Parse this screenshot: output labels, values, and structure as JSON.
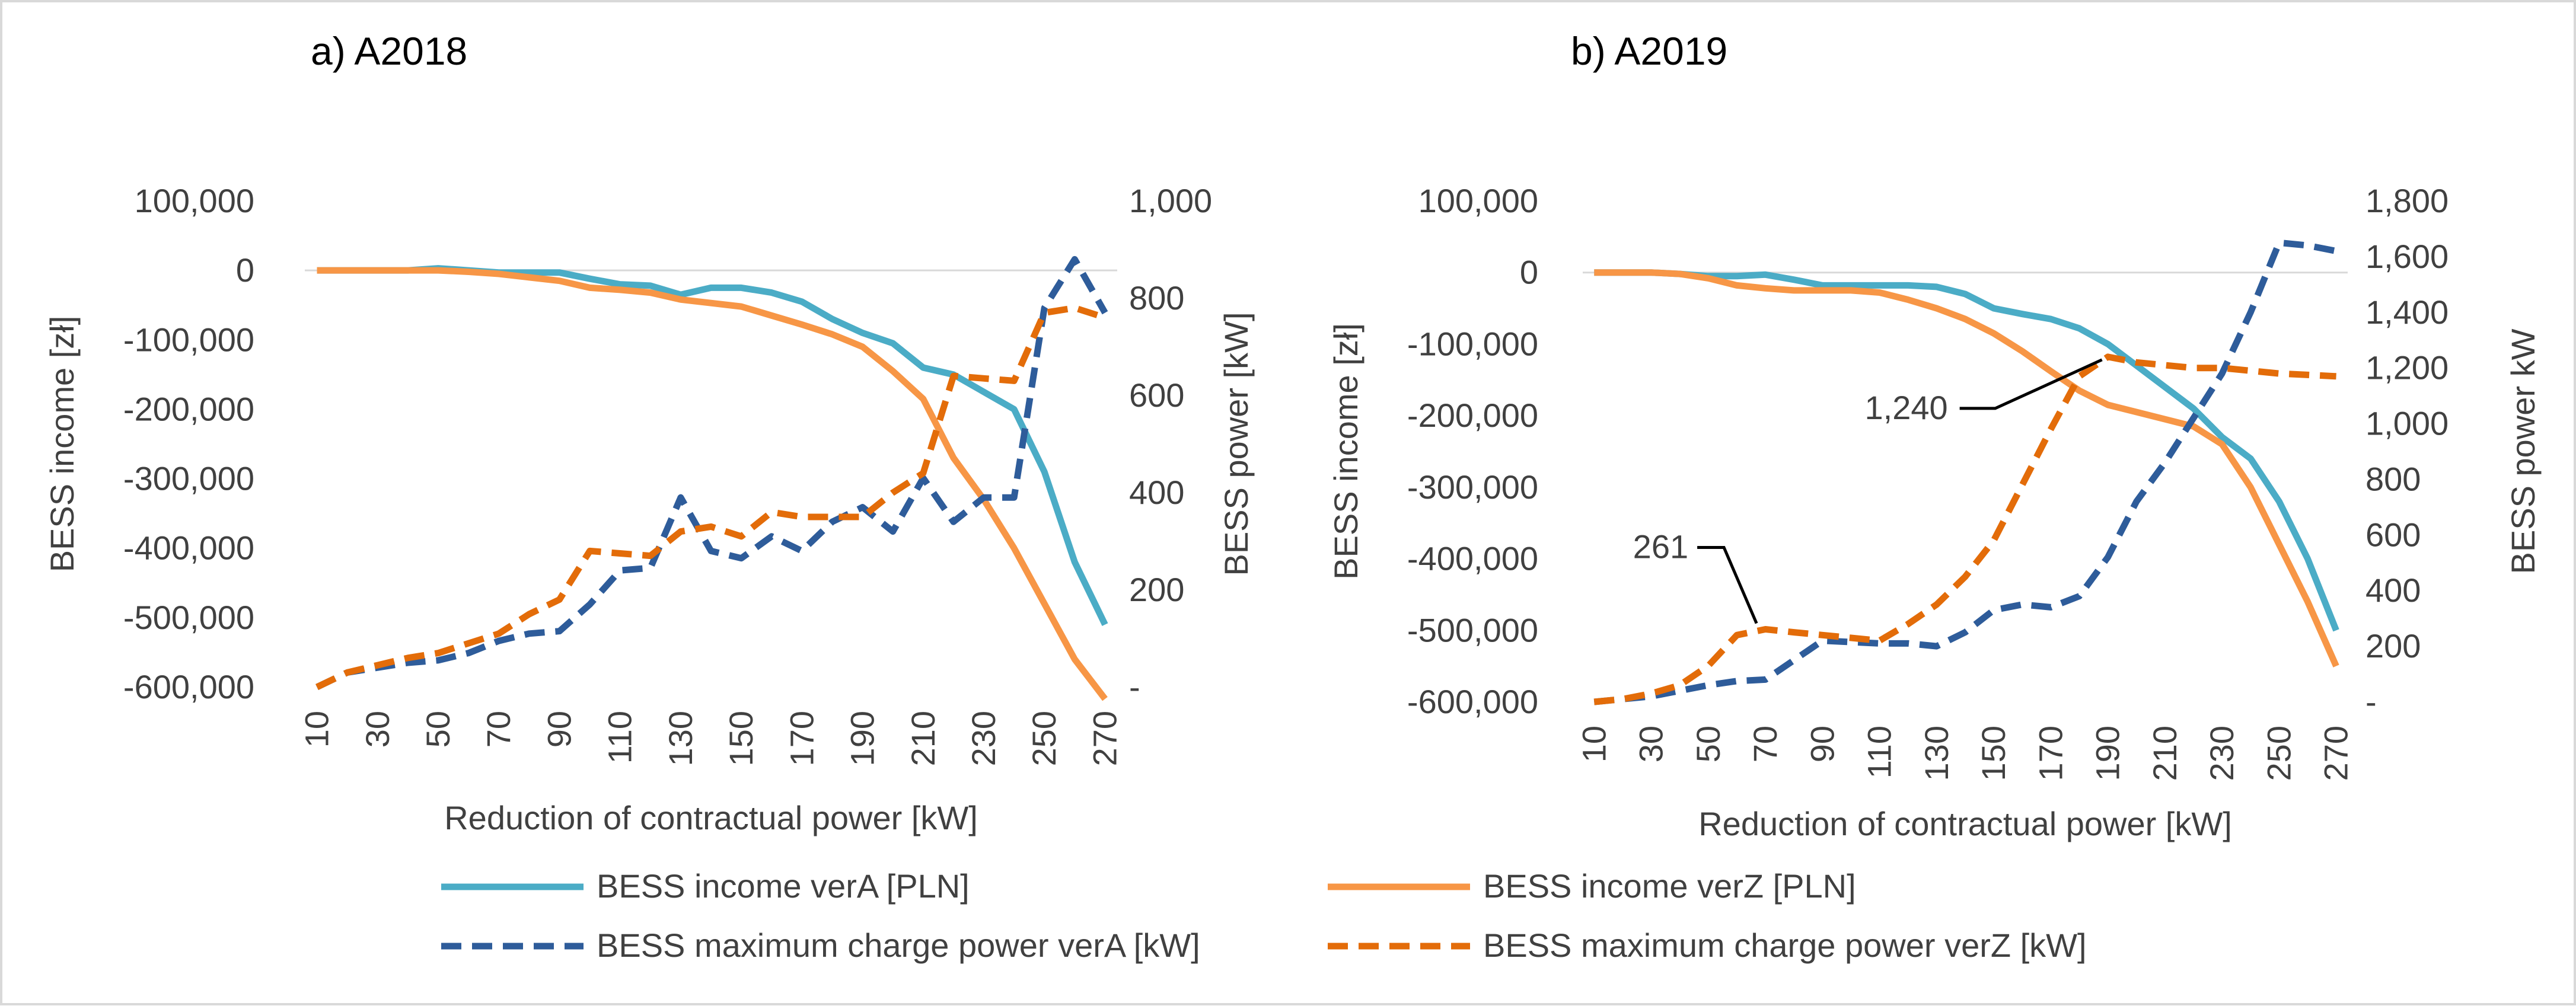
{
  "chart_data": [
    {
      "type": "line",
      "title": "a) A2018",
      "xlabel": "Reduction of contractual power [kW]",
      "ylabel": "BESS income [zł]",
      "y2label": "BESS power  [kW]",
      "ylim": [
        -600000,
        100000
      ],
      "y2lim": [
        0,
        1000
      ],
      "yticks": [
        100000,
        0,
        -100000,
        -200000,
        -300000,
        -400000,
        -500000,
        -600000
      ],
      "ytick_labels": [
        "100,000",
        "0",
        "-100,000",
        "-200,000",
        "-300,000",
        "-400,000",
        "-500,000",
        "-600,000"
      ],
      "y2ticks": [
        1000,
        800,
        600,
        400,
        200,
        0
      ],
      "y2tick_labels": [
        "1,000",
        "800",
        "600",
        "400",
        "200",
        "-"
      ],
      "x": [
        10,
        20,
        30,
        40,
        50,
        60,
        70,
        80,
        90,
        100,
        110,
        120,
        130,
        140,
        150,
        160,
        170,
        180,
        190,
        200,
        210,
        220,
        230,
        240,
        250,
        260,
        270
      ],
      "xtick_labels": [
        "10",
        "30",
        "50",
        "70",
        "90",
        "110",
        "130",
        "150",
        "170",
        "190",
        "210",
        "230",
        "250",
        "270"
      ],
      "grid": false,
      "legend_position": "bottom",
      "series": [
        {
          "name": "BESS income verA [PLN]",
          "axis": "left",
          "values": [
            0,
            0,
            0,
            0,
            3000,
            0,
            -3000,
            -3000,
            -3000,
            -12000,
            -20000,
            -22000,
            -35000,
            -25000,
            -25000,
            -32000,
            -45000,
            -70000,
            -90000,
            -105000,
            -140000,
            -150000,
            -175000,
            -200000,
            -290000,
            -420000,
            -510000
          ]
        },
        {
          "name": "BESS income verZ [PLN]",
          "axis": "left",
          "values": [
            0,
            0,
            0,
            0,
            0,
            -2000,
            -5000,
            -10000,
            -15000,
            -25000,
            -28000,
            -32000,
            -42000,
            -47000,
            -52000,
            -65000,
            -78000,
            -92000,
            -110000,
            -145000,
            -185000,
            -270000,
            -330000,
            -400000,
            -480000,
            -560000,
            -620000
          ]
        },
        {
          "name": "BESS maximum charge power verA [kW]",
          "axis": "right",
          "values": [
            0,
            30,
            40,
            50,
            55,
            70,
            95,
            110,
            115,
            170,
            240,
            245,
            390,
            280,
            265,
            310,
            280,
            340,
            370,
            320,
            430,
            340,
            390,
            390,
            780,
            880,
            770
          ]
        },
        {
          "name": "BESS maximum charge power verZ [kW]",
          "axis": "right",
          "values": [
            0,
            30,
            45,
            60,
            70,
            90,
            110,
            150,
            180,
            280,
            275,
            270,
            320,
            330,
            310,
            360,
            350,
            350,
            350,
            400,
            440,
            640,
            635,
            630,
            770,
            780,
            760
          ]
        }
      ],
      "annotations": []
    },
    {
      "type": "line",
      "title": "b) A2019",
      "xlabel": "Reduction of contractual power [kW]",
      "ylabel": "BESS income [zł]",
      "y2label": "BESS power  kW",
      "ylim": [
        -600000,
        100000
      ],
      "y2lim": [
        0,
        1800
      ],
      "yticks": [
        100000,
        0,
        -100000,
        -200000,
        -300000,
        -400000,
        -500000,
        -600000
      ],
      "ytick_labels": [
        "100,000",
        "0",
        "-100,000",
        "-200,000",
        "-300,000",
        "-400,000",
        "-500,000",
        "-600,000"
      ],
      "y2ticks": [
        1800,
        1600,
        1400,
        1200,
        1000,
        800,
        600,
        400,
        200,
        0
      ],
      "y2tick_labels": [
        "1,800",
        "1,600",
        "1,400",
        "1,200",
        "1,000",
        "800",
        "600",
        "400",
        "200",
        "-"
      ],
      "x": [
        10,
        20,
        30,
        40,
        50,
        60,
        70,
        80,
        90,
        100,
        110,
        120,
        130,
        140,
        150,
        160,
        170,
        180,
        190,
        200,
        210,
        220,
        230,
        240,
        250,
        260,
        270
      ],
      "xtick_labels": [
        "10",
        "30",
        "50",
        "70",
        "90",
        "110",
        "130",
        "150",
        "170",
        "190",
        "210",
        "230",
        "250",
        "270"
      ],
      "grid": false,
      "legend_position": "bottom",
      "series": [
        {
          "name": "BESS income verA [PLN]",
          "axis": "left",
          "values": [
            0,
            0,
            0,
            -2000,
            -5000,
            -5000,
            -3000,
            -10000,
            -18000,
            -18000,
            -18000,
            -18000,
            -20000,
            -30000,
            -50000,
            -58000,
            -65000,
            -78000,
            -100000,
            -130000,
            -160000,
            -190000,
            -230000,
            -260000,
            -320000,
            -400000,
            -500000
          ]
        },
        {
          "name": "BESS income verZ [PLN]",
          "axis": "left",
          "values": [
            0,
            0,
            0,
            -2000,
            -8000,
            -18000,
            -22000,
            -25000,
            -25000,
            -25000,
            -28000,
            -38000,
            -50000,
            -65000,
            -85000,
            -110000,
            -138000,
            -165000,
            -185000,
            -195000,
            -205000,
            -215000,
            -240000,
            -300000,
            -380000,
            -460000,
            -550000
          ]
        },
        {
          "name": "BESS maximum charge power verA [kW]",
          "axis": "right",
          "values": [
            0,
            10,
            20,
            40,
            60,
            75,
            80,
            150,
            220,
            215,
            210,
            210,
            200,
            250,
            330,
            350,
            340,
            380,
            520,
            720,
            860,
            1020,
            1180,
            1400,
            1650,
            1640,
            1620
          ]
        },
        {
          "name": "BESS maximum charge power verZ [kW]",
          "axis": "right",
          "values": [
            0,
            10,
            30,
            60,
            130,
            240,
            261,
            250,
            240,
            230,
            220,
            280,
            350,
            450,
            580,
            780,
            980,
            1170,
            1240,
            1220,
            1210,
            1200,
            1200,
            1190,
            1180,
            1175,
            1170
          ]
        }
      ],
      "annotations": [
        {
          "text": "1,240",
          "x": 190,
          "y": 1240,
          "axis": "right"
        },
        {
          "text": "261",
          "x": 70,
          "y": 261,
          "axis": "right"
        }
      ]
    }
  ],
  "legend": [
    {
      "label": "BESS income verA [PLN]",
      "color": "#4bacc6",
      "dashed": false
    },
    {
      "label": "BESS income verZ [PLN]",
      "color": "#f79646",
      "dashed": false
    },
    {
      "label": "BESS maximum charge power verA [kW]",
      "color": "#2e5c9a",
      "dashed": true
    },
    {
      "label": "BESS maximum charge power verZ [kW]",
      "color": "#e36c09",
      "dashed": true
    }
  ],
  "colors": {
    "income_verA": "#4bacc6",
    "income_verZ": "#f79646",
    "power_verA": "#2e5c9a",
    "power_verZ": "#e36c09"
  }
}
